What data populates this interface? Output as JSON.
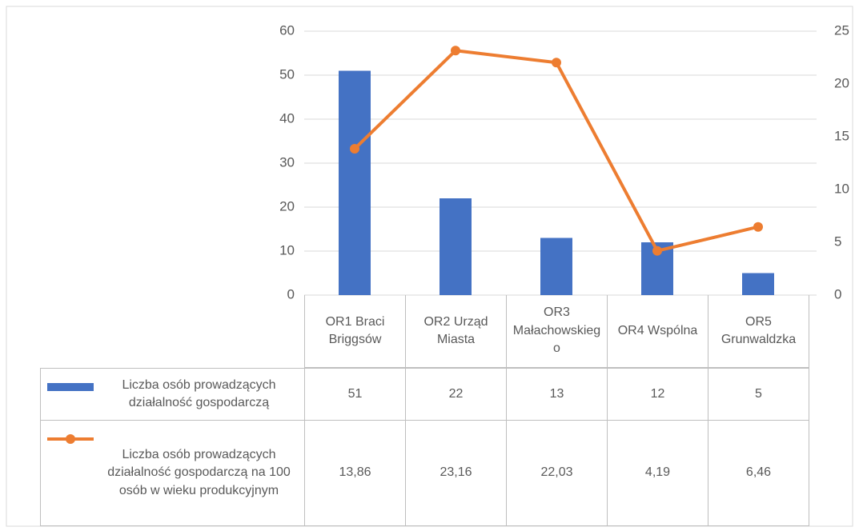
{
  "chart_data": {
    "type": "bar_line",
    "categories": [
      "OR1 Braci Briggsów",
      "OR2 Urząd Miasta",
      "OR3 Małachowskiego",
      "OR4 Wspólna",
      "OR5 Grunwaldzka"
    ],
    "series": [
      {
        "name": "Liczba osób prowadzących działalność gospodarczą",
        "type": "bar",
        "color": "#4472c4",
        "values": [
          51,
          22,
          13,
          12,
          5
        ]
      },
      {
        "name": "Liczba osób prowadzących działalność gospodarczą na 100 osób w wieku produkcyjnym",
        "type": "line",
        "axis": "y2",
        "color": "#ed7d31",
        "values": [
          13.86,
          23.16,
          22.03,
          4.19,
          6.46
        ],
        "value_labels": [
          "13,86",
          "23,16",
          "22,03",
          "4,19",
          "6,46"
        ]
      }
    ],
    "ylim": [
      0,
      60
    ],
    "yticks": [
      0,
      10,
      20,
      30,
      40,
      50,
      60
    ],
    "y2lim": [
      0,
      25
    ],
    "y2ticks": [
      0,
      5,
      10,
      15,
      20,
      25
    ],
    "grid": true,
    "data_table": true
  }
}
